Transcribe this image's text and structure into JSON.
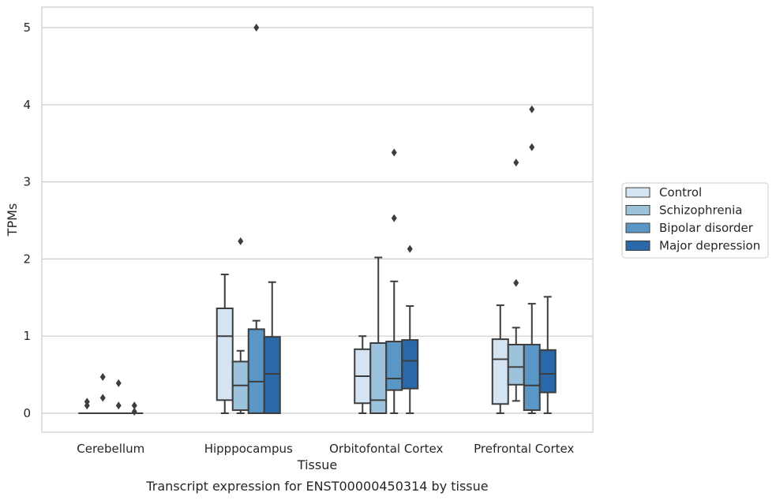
{
  "chart_data": {
    "type": "box",
    "caption": "Transcript expression for ENST00000450314 by tissue",
    "xlabel": "Tissue",
    "ylabel": "TPMs",
    "categories": [
      "Cerebellum",
      "Hipppocampus",
      "Orbitofontal Cortex",
      "Prefrontal Cortex"
    ],
    "yticks": [
      "0",
      "1",
      "2",
      "3",
      "4",
      "5"
    ],
    "ylim": [
      -0.24,
      5.27
    ],
    "grid": "horizontal",
    "legend_position": "right",
    "series": [
      {
        "name": "Control",
        "color": "#d4e4f3",
        "boxes": [
          {
            "whisker_low": 0,
            "q1": 0,
            "median": 0,
            "q3": 0,
            "whisker_high": 0,
            "outliers": [
              0.1,
              0.15
            ]
          },
          {
            "whisker_low": 0,
            "q1": 0.17,
            "median": 1.0,
            "q3": 1.36,
            "whisker_high": 1.8,
            "outliers": []
          },
          {
            "whisker_low": 0,
            "q1": 0.13,
            "median": 0.48,
            "q3": 0.83,
            "whisker_high": 1.0,
            "outliers": []
          },
          {
            "whisker_low": 0,
            "q1": 0.12,
            "median": 0.7,
            "q3": 0.96,
            "whisker_high": 1.4,
            "outliers": []
          }
        ]
      },
      {
        "name": "Schizophrenia",
        "color": "#9cc2dc",
        "boxes": [
          {
            "whisker_low": 0,
            "q1": 0,
            "median": 0,
            "q3": 0,
            "whisker_high": 0,
            "outliers": [
              0.2,
              0.47
            ]
          },
          {
            "whisker_low": 0,
            "q1": 0.04,
            "median": 0.36,
            "q3": 0.67,
            "whisker_high": 0.81,
            "outliers": [
              2.23
            ]
          },
          {
            "whisker_low": 0,
            "q1": 0,
            "median": 0.17,
            "q3": 0.91,
            "whisker_high": 2.02,
            "outliers": []
          },
          {
            "whisker_low": 0.16,
            "q1": 0.37,
            "median": 0.6,
            "q3": 0.89,
            "whisker_high": 1.11,
            "outliers": [
              1.69,
              3.25
            ]
          }
        ]
      },
      {
        "name": "Bipolar disorder",
        "color": "#5a97c7",
        "boxes": [
          {
            "whisker_low": 0,
            "q1": 0,
            "median": 0,
            "q3": 0,
            "whisker_high": 0,
            "outliers": [
              0.1,
              0.39
            ]
          },
          {
            "whisker_low": 0,
            "q1": 0,
            "median": 0.41,
            "q3": 1.09,
            "whisker_high": 1.2,
            "outliers": [
              5.0
            ]
          },
          {
            "whisker_low": 0,
            "q1": 0.3,
            "median": 0.45,
            "q3": 0.93,
            "whisker_high": 1.71,
            "outliers": [
              2.53,
              3.38
            ]
          },
          {
            "whisker_low": 0,
            "q1": 0.04,
            "median": 0.36,
            "q3": 0.89,
            "whisker_high": 1.42,
            "outliers": [
              3.45,
              3.94
            ]
          }
        ]
      },
      {
        "name": "Major depression",
        "color": "#2a69a9",
        "boxes": [
          {
            "whisker_low": 0,
            "q1": 0,
            "median": 0,
            "q3": 0,
            "whisker_high": 0,
            "outliers": [
              0.02,
              0.1
            ]
          },
          {
            "whisker_low": 0,
            "q1": 0,
            "median": 0.51,
            "q3": 0.99,
            "whisker_high": 1.7,
            "outliers": []
          },
          {
            "whisker_low": 0,
            "q1": 0.32,
            "median": 0.68,
            "q3": 0.95,
            "whisker_high": 1.39,
            "outliers": [
              2.13
            ]
          },
          {
            "whisker_low": 0,
            "q1": 0.27,
            "median": 0.51,
            "q3": 0.82,
            "whisker_high": 1.51,
            "outliers": []
          }
        ]
      }
    ]
  }
}
